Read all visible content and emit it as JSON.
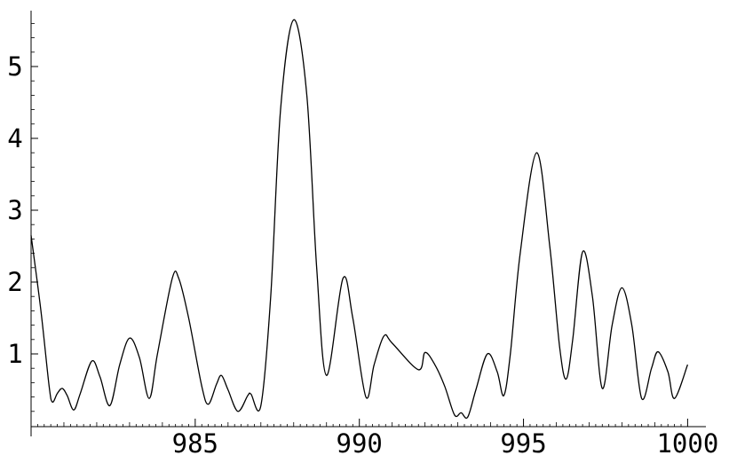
{
  "chart_data": {
    "type": "line",
    "title": "",
    "xlabel": "",
    "ylabel": "",
    "xlim": [
      980,
      1000.4
    ],
    "ylim": [
      0,
      5.7
    ],
    "x_ticks": [
      985,
      990,
      995,
      1000
    ],
    "y_ticks": [
      1,
      2,
      3,
      4,
      5
    ],
    "x_tick_labels": [
      "985",
      "990",
      "995",
      "1000"
    ],
    "y_tick_labels": [
      "1",
      "2",
      "3",
      "4",
      "5"
    ],
    "grid": false,
    "series": [
      {
        "color": "#000000",
        "points": [
          [
            980.0,
            2.65
          ],
          [
            980.3,
            1.6
          ],
          [
            980.55,
            0.55
          ],
          [
            980.65,
            0.33
          ],
          [
            980.8,
            0.45
          ],
          [
            980.95,
            0.52
          ],
          [
            981.1,
            0.42
          ],
          [
            981.3,
            0.22
          ],
          [
            981.5,
            0.45
          ],
          [
            981.85,
            0.9
          ],
          [
            982.1,
            0.68
          ],
          [
            982.4,
            0.28
          ],
          [
            982.7,
            0.85
          ],
          [
            983.0,
            1.22
          ],
          [
            983.3,
            0.95
          ],
          [
            983.6,
            0.38
          ],
          [
            983.85,
            1.0
          ],
          [
            984.3,
            2.05
          ],
          [
            984.5,
            2.05
          ],
          [
            984.8,
            1.5
          ],
          [
            985.2,
            0.55
          ],
          [
            985.4,
            0.3
          ],
          [
            985.65,
            0.58
          ],
          [
            985.8,
            0.7
          ],
          [
            986.0,
            0.5
          ],
          [
            986.3,
            0.2
          ],
          [
            986.6,
            0.42
          ],
          [
            986.7,
            0.44
          ],
          [
            987.0,
            0.28
          ],
          [
            987.3,
            1.8
          ],
          [
            987.6,
            4.4
          ],
          [
            988.0,
            5.65
          ],
          [
            988.4,
            4.6
          ],
          [
            988.7,
            2.2
          ],
          [
            989.0,
            0.7
          ],
          [
            989.5,
            2.05
          ],
          [
            989.8,
            1.5
          ],
          [
            990.2,
            0.4
          ],
          [
            990.45,
            0.85
          ],
          [
            990.75,
            1.25
          ],
          [
            991.0,
            1.15
          ],
          [
            991.8,
            0.78
          ],
          [
            992.0,
            1.02
          ],
          [
            992.3,
            0.85
          ],
          [
            992.6,
            0.55
          ],
          [
            992.9,
            0.15
          ],
          [
            993.1,
            0.18
          ],
          [
            993.3,
            0.12
          ],
          [
            993.55,
            0.5
          ],
          [
            993.9,
            1.0
          ],
          [
            994.2,
            0.75
          ],
          [
            994.4,
            0.42
          ],
          [
            994.6,
            1.0
          ],
          [
            994.9,
            2.4
          ],
          [
            995.4,
            3.8
          ],
          [
            995.8,
            2.5
          ],
          [
            996.1,
            1.1
          ],
          [
            996.3,
            0.65
          ],
          [
            996.5,
            1.2
          ],
          [
            996.8,
            2.42
          ],
          [
            997.1,
            1.8
          ],
          [
            997.4,
            0.52
          ],
          [
            997.7,
            1.4
          ],
          [
            998.0,
            1.92
          ],
          [
            998.3,
            1.4
          ],
          [
            998.6,
            0.38
          ],
          [
            998.9,
            0.8
          ],
          [
            999.1,
            1.03
          ],
          [
            999.4,
            0.75
          ],
          [
            999.6,
            0.38
          ],
          [
            1000.0,
            0.85
          ]
        ]
      }
    ]
  }
}
